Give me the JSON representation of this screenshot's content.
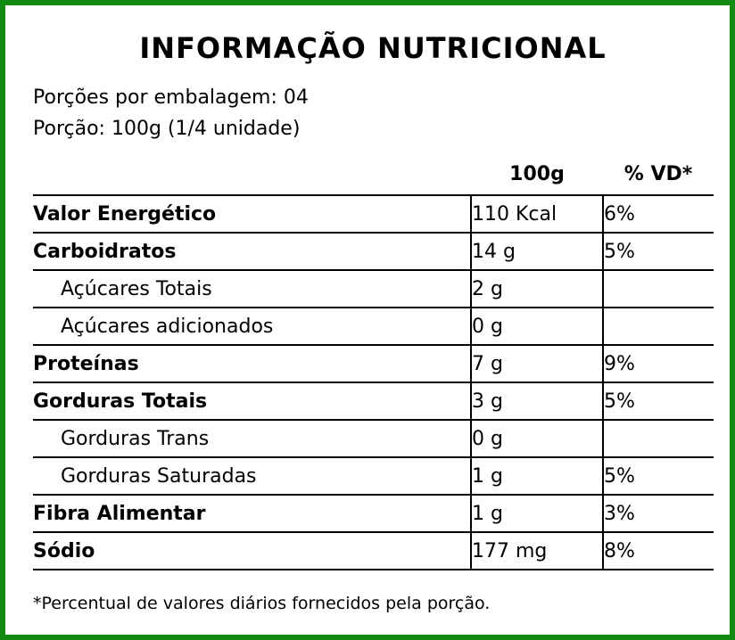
{
  "label": {
    "title": "INFORMAÇÃO NUTRICIONAL",
    "servings_per_package": "Porções por embalagem: 04",
    "serving_size": "Porção: 100g (1/4 unidade)",
    "columns": {
      "amount": "100g",
      "daily_value": "% VD*"
    },
    "rows": [
      {
        "name": "Valor Energético",
        "amount": "110 Kcal",
        "dv": "6%"
      },
      {
        "name": "Carboidratos",
        "amount": "14 g",
        "dv": "5%"
      },
      {
        "name": "Açúcares Totais",
        "amount": "2 g",
        "dv": ""
      },
      {
        "name": "Açúcares adicionados",
        "amount": "0 g",
        "dv": ""
      },
      {
        "name": "Proteínas",
        "amount": "7 g",
        "dv": "9%"
      },
      {
        "name": "Gorduras Totais",
        "amount": "3 g",
        "dv": "5%"
      },
      {
        "name": "Gorduras Trans",
        "amount": "0 g",
        "dv": ""
      },
      {
        "name": "Gorduras Saturadas",
        "amount": "1 g",
        "dv": "5%"
      },
      {
        "name": "Fibra Alimentar",
        "amount": "1 g",
        "dv": "3%"
      },
      {
        "name": "Sódio",
        "amount": "177 mg",
        "dv": "8%"
      }
    ],
    "footnote": "*Percentual de valores diários fornecidos pela porção."
  },
  "colors": {
    "border": "#118a11",
    "text": "#000000",
    "background": "#ffffff"
  }
}
